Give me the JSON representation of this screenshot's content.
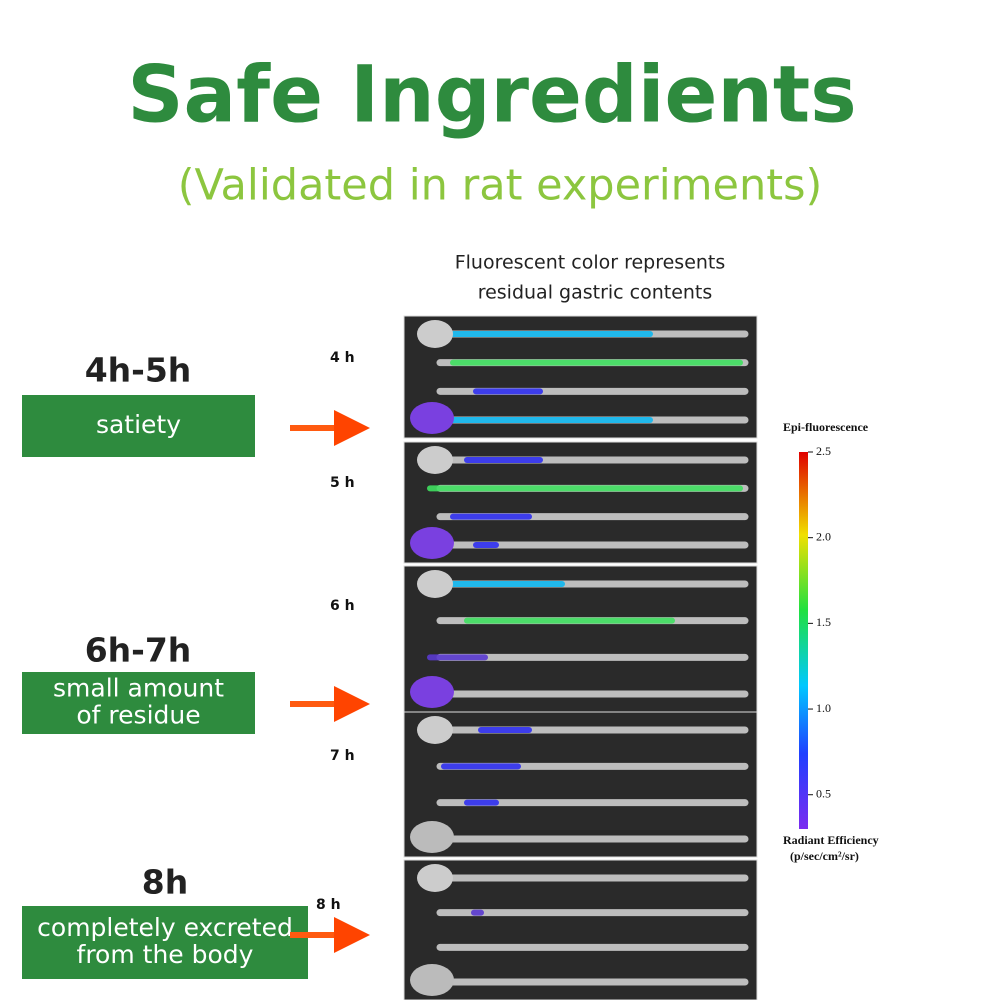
{
  "header": {
    "title": "Safe Ingredients",
    "subtitle": "(Validated in rat experiments)"
  },
  "caption": [
    "Fluorescent color represents",
    "residual gastric contents"
  ],
  "stages": [
    {
      "time": "4h-5h",
      "label": [
        "satiety"
      ]
    },
    {
      "time": "6h-7h",
      "label": [
        "small amount",
        "of residue"
      ]
    },
    {
      "time": "8h",
      "label": [
        "completely excreted",
        "from the body"
      ]
    }
  ],
  "panels": [
    "4 h",
    "5 h",
    "6 h",
    "7 h",
    "8 h"
  ],
  "colorbar": {
    "title": "Epi-fluorescence",
    "range": [
      0.3,
      2.5
    ],
    "ticks": [
      0.5,
      {
        "value": 1,
        "label": "1.0"
      },
      1.5,
      {
        "value": 2,
        "label": "2.0"
      },
      2.5
    ],
    "label": "Radiant Efficiency",
    "unit": "(p/sec/cm²/sr)"
  }
}
